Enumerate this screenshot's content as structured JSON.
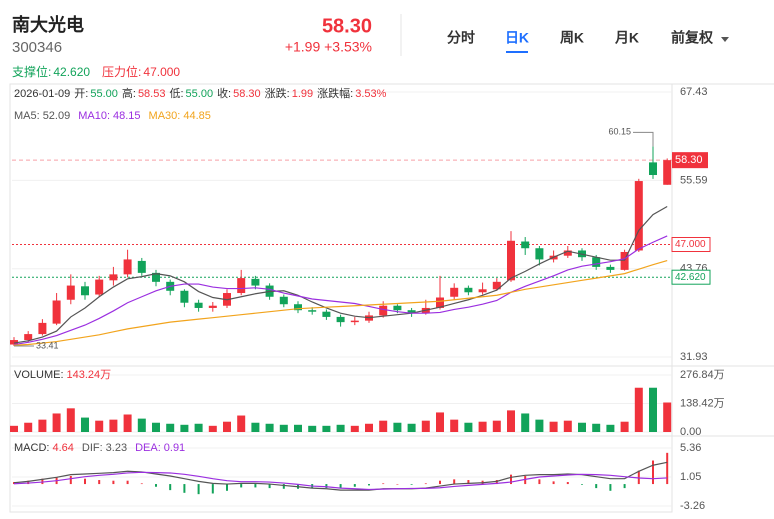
{
  "header": {
    "name": "南大光电",
    "code": "300346",
    "price": "58.30",
    "change": "+1.99 +3.53%",
    "tabs": [
      "分时",
      "日K",
      "周K",
      "月K",
      "前复权"
    ],
    "active_tab": 1
  },
  "chart_data": [
    {
      "type": "candlestick",
      "info": {
        "date": "2026-01-09",
        "items": [
          {
            "label": "开:",
            "value": "55.00",
            "color": "#12a35a"
          },
          {
            "label": "高:",
            "value": "58.53",
            "color": "#f0323c"
          },
          {
            "label": "低:",
            "value": "55.00",
            "color": "#12a35a"
          },
          {
            "label": "收:",
            "value": "58.30",
            "color": "#f0323c"
          },
          {
            "label": "涨跌:",
            "value": "1.99",
            "color": "#f0323c"
          },
          {
            "label": "涨跌幅:",
            "value": "3.53%",
            "color": "#f0323c"
          }
        ]
      },
      "levels": [
        {
          "label": "支撑位:",
          "value": 42.62,
          "value_label": "42.620",
          "color": "#12a35a"
        },
        {
          "label": "压力位:",
          "value": 47,
          "value_label": "47.000",
          "color": "#f0323c"
        }
      ],
      "up_color": "#f0323c",
      "down_color": "#12a35a",
      "open": [
        33.6,
        34.2,
        35.0,
        36.4,
        39.6,
        41.4,
        40.3,
        42.2,
        43.0,
        44.8,
        43.2,
        42.0,
        40.8,
        39.2,
        38.5,
        38.8,
        40.5,
        42.4,
        41.5,
        40.0,
        39.0,
        38.2,
        38.0,
        37.3,
        36.6,
        36.8,
        37.5,
        38.8,
        38.2,
        37.8,
        38.5,
        40.0,
        41.2,
        40.6,
        41.0,
        42.2,
        47.4,
        46.5,
        45.0,
        45.5,
        46.2,
        45.3,
        44.0,
        43.6,
        46.2,
        58.0,
        55.0
      ],
      "high": [
        34.6,
        35.4,
        37.0,
        40.5,
        43.0,
        42.0,
        42.8,
        44.0,
        46.3,
        45.2,
        43.6,
        42.3,
        41.0,
        39.6,
        39.3,
        41.0,
        43.6,
        42.8,
        41.8,
        40.3,
        39.4,
        38.6,
        38.3,
        37.6,
        37.3,
        38.0,
        39.4,
        39.0,
        38.5,
        39.6,
        42.8,
        41.8,
        41.5,
        41.9,
        42.5,
        48.8,
        48.0,
        46.8,
        46.2,
        46.8,
        46.5,
        45.6,
        44.3,
        46.3,
        55.8,
        60.15,
        58.53
      ],
      "low": [
        33.41,
        33.9,
        34.8,
        36.2,
        39.0,
        39.6,
        40.0,
        41.5,
        42.6,
        42.8,
        41.4,
        40.2,
        38.6,
        38.0,
        38.0,
        38.5,
        40.2,
        41.0,
        39.6,
        38.6,
        37.8,
        37.6,
        36.9,
        36.0,
        36.2,
        36.5,
        37.2,
        37.8,
        37.3,
        37.6,
        38.3,
        39.6,
        40.2,
        40.3,
        40.8,
        42.0,
        45.6,
        44.2,
        44.6,
        45.2,
        44.8,
        43.6,
        43.2,
        43.5,
        46.0,
        55.8,
        55.0
      ],
      "close": [
        34.2,
        35.0,
        36.5,
        39.5,
        41.5,
        40.2,
        42.3,
        43.0,
        45.0,
        43.2,
        42.0,
        40.8,
        39.2,
        38.5,
        38.8,
        40.5,
        42.5,
        41.5,
        40.0,
        39.0,
        38.2,
        38.0,
        37.3,
        36.6,
        36.8,
        37.5,
        38.8,
        38.2,
        37.8,
        38.5,
        39.9,
        41.2,
        40.6,
        41.0,
        42.0,
        47.5,
        46.5,
        45.0,
        45.5,
        46.2,
        45.3,
        44.0,
        43.6,
        46.0,
        55.5,
        56.31,
        58.3
      ],
      "series": [
        {
          "name": "MA5:",
          "value_label": "52.09",
          "color": "#555555",
          "values": [
            33.8,
            34.1,
            34.6,
            35.4,
            37.3,
            38.5,
            40.0,
            41.3,
            42.4,
            42.7,
            43.1,
            42.8,
            42.0,
            40.7,
            39.9,
            39.6,
            40.0,
            40.4,
            40.7,
            40.8,
            40.2,
            39.3,
            38.5,
            37.8,
            37.4,
            37.2,
            37.4,
            37.6,
            37.8,
            38.2,
            38.6,
            39.1,
            39.6,
            40.2,
            40.9,
            42.5,
            43.4,
            44.4,
            45.3,
            46.1,
            45.7,
            45.3,
            44.9,
            44.9,
            48.9,
            51.0,
            52.09
          ]
        },
        {
          "name": "MA10:",
          "value_label": "48.15",
          "color": "#9b2fe0",
          "values": [
            33.6,
            33.9,
            34.3,
            34.8,
            35.5,
            36.2,
            37.1,
            38.1,
            39.2,
            40.0,
            40.8,
            41.4,
            41.7,
            41.7,
            41.3,
            41.1,
            41.1,
            41.2,
            41.0,
            40.5,
            40.1,
            39.7,
            39.5,
            39.3,
            39.1,
            38.7,
            38.3,
            38.0,
            37.8,
            37.8,
            37.9,
            38.3,
            38.6,
            39.0,
            39.5,
            40.6,
            41.4,
            42.1,
            42.8,
            43.6,
            44.1,
            44.4,
            44.7,
            45.1,
            46.4,
            47.3,
            48.15
          ]
        },
        {
          "name": "MA30:",
          "value_label": "44.85",
          "color": "#f2a41d",
          "values": [
            33.5,
            33.6,
            33.8,
            34.0,
            34.3,
            34.6,
            34.9,
            35.3,
            35.7,
            36.0,
            36.3,
            36.6,
            36.8,
            37.0,
            37.2,
            37.4,
            37.6,
            37.8,
            38.0,
            38.2,
            38.4,
            38.5,
            38.6,
            38.7,
            38.8,
            38.9,
            39.0,
            39.1,
            39.2,
            39.3,
            39.4,
            39.6,
            39.8,
            40.0,
            40.2,
            40.6,
            41.0,
            41.3,
            41.6,
            41.9,
            42.2,
            42.5,
            42.8,
            43.1,
            43.7,
            44.3,
            44.85
          ]
        }
      ],
      "annotations": [
        {
          "label": "60.15",
          "value": 60.15
        },
        {
          "label": "33.41",
          "value": 33.41
        }
      ],
      "ylim": [
        31.93,
        67.43
      ],
      "yticks": [
        67.43,
        55.59,
        43.76,
        31.93
      ],
      "grid": true
    },
    {
      "type": "bar",
      "title": "VOLUME:",
      "title_value": "143.24万",
      "values": [
        30,
        45,
        60,
        90,
        115,
        70,
        55,
        60,
        85,
        65,
        45,
        40,
        35,
        40,
        30,
        50,
        80,
        45,
        40,
        35,
        35,
        30,
        30,
        35,
        30,
        40,
        55,
        45,
        40,
        55,
        95,
        60,
        45,
        50,
        55,
        105,
        90,
        60,
        50,
        55,
        45,
        40,
        35,
        50,
        215,
        215,
        143.24
      ],
      "ylim": [
        0,
        276.84
      ],
      "yticks": [
        {
          "value": 276.84,
          "label": "276.84万"
        },
        {
          "value": 138.42,
          "label": "138.42万"
        },
        {
          "value": 0,
          "label": "0.00"
        }
      ],
      "grid": true
    },
    {
      "type": "macd",
      "title": "MACD:",
      "title_value": "4.64",
      "up_color": "#f0323c",
      "down_color": "#12a35a",
      "values": [
        0.3,
        0.5,
        0.8,
        1.0,
        1.2,
        0.8,
        0.6,
        0.5,
        0.5,
        0.1,
        -0.4,
        -0.9,
        -1.3,
        -1.5,
        -1.4,
        -1.0,
        -0.5,
        -0.5,
        -0.6,
        -0.7,
        -0.7,
        -0.6,
        -0.6,
        -0.6,
        -0.4,
        -0.2,
        0.1,
        0.0,
        -0.1,
        0.1,
        0.5,
        0.7,
        0.6,
        0.5,
        0.6,
        1.4,
        1.2,
        0.7,
        0.4,
        0.3,
        -0.1,
        -0.6,
        -1.0,
        -0.6,
        2.0,
        3.5,
        4.64
      ],
      "series": [
        {
          "name": "DIF:",
          "value_label": "3.23",
          "color": "#555555",
          "values": [
            0.2,
            0.4,
            0.7,
            1.0,
            1.4,
            1.5,
            1.6,
            1.7,
            1.9,
            1.8,
            1.5,
            1.2,
            0.8,
            0.4,
            0.1,
            0.0,
            0.1,
            0.1,
            0.0,
            -0.2,
            -0.4,
            -0.6,
            -0.7,
            -0.9,
            -0.9,
            -0.9,
            -0.7,
            -0.7,
            -0.7,
            -0.6,
            -0.3,
            0.0,
            0.1,
            0.2,
            0.4,
            1.0,
            1.3,
            1.4,
            1.4,
            1.5,
            1.4,
            1.1,
            0.8,
            0.8,
            1.9,
            2.8,
            3.23
          ]
        },
        {
          "name": "DEA:",
          "value_label": "0.91",
          "color": "#9b2fe0",
          "values": [
            0.05,
            0.15,
            0.3,
            0.5,
            0.8,
            1.1,
            1.3,
            1.45,
            1.65,
            1.75,
            1.7,
            1.65,
            1.45,
            1.15,
            0.8,
            0.5,
            0.35,
            0.35,
            0.3,
            0.15,
            -0.05,
            -0.3,
            -0.4,
            -0.6,
            -0.7,
            -0.8,
            -0.75,
            -0.7,
            -0.65,
            -0.65,
            -0.55,
            -0.35,
            -0.2,
            -0.05,
            0.1,
            0.3,
            0.7,
            1.05,
            1.2,
            1.35,
            1.45,
            1.4,
            1.3,
            1.1,
            0.9,
            0.8,
            0.91
          ]
        }
      ],
      "ylim": [
        -3.26,
        5.36
      ],
      "yticks": [
        5.36,
        1.05,
        -3.26
      ],
      "grid": true
    }
  ]
}
